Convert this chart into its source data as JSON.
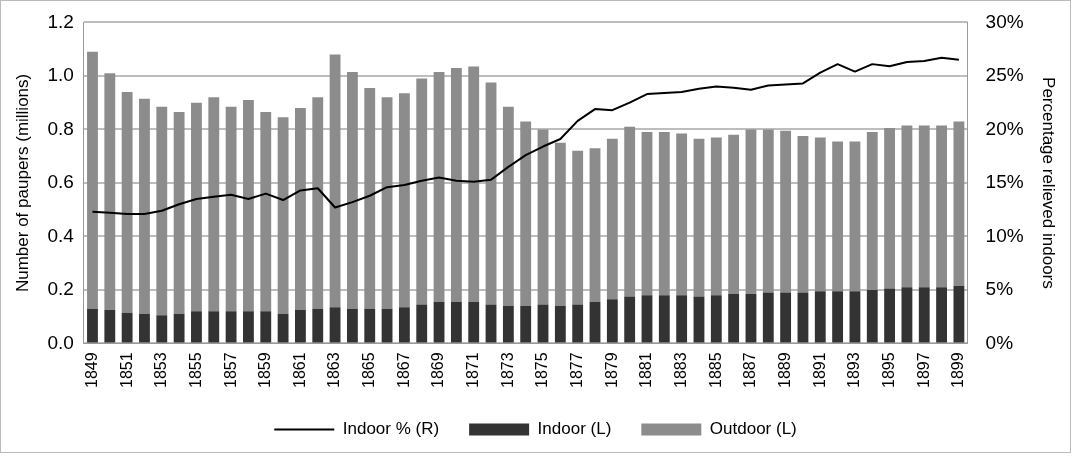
{
  "chart_data": {
    "type": "bar",
    "stacked": true,
    "ylabel": "Number of paupers (millions)",
    "y2label": "Percentage relieved indoors",
    "categories": [
      "1849",
      null,
      "1851",
      null,
      "1853",
      null,
      "1855",
      null,
      "1857",
      null,
      "1859",
      null,
      "1861",
      null,
      "1863",
      null,
      "1865",
      null,
      "1867",
      null,
      "1869",
      null,
      "1871",
      null,
      "1873",
      null,
      "1875",
      null,
      "1877",
      null,
      "1879",
      null,
      "1881",
      null,
      "1883",
      null,
      "1885",
      null,
      "1887",
      null,
      "1889",
      null,
      "1891",
      null,
      "1893",
      null,
      "1895",
      null,
      "1897",
      null,
      "1899"
    ],
    "series": [
      {
        "name": "Indoor (L)",
        "color": "#333333",
        "values": [
          0.13,
          0.125,
          0.115,
          0.11,
          0.105,
          0.11,
          0.12,
          0.12,
          0.12,
          0.12,
          0.12,
          0.11,
          0.125,
          0.13,
          0.135,
          0.13,
          0.13,
          0.13,
          0.135,
          0.145,
          0.155,
          0.155,
          0.155,
          0.145,
          0.14,
          0.14,
          0.145,
          0.14,
          0.145,
          0.155,
          0.165,
          0.175,
          0.18,
          0.18,
          0.18,
          0.175,
          0.18,
          0.185,
          0.185,
          0.19,
          0.19,
          0.19,
          0.195,
          0.195,
          0.195,
          0.2,
          0.205,
          0.21,
          0.21,
          0.21,
          0.215
        ]
      },
      {
        "name": "Outdoor (L)",
        "color": "#8c8c8c",
        "values": [
          0.96,
          0.885,
          0.825,
          0.805,
          0.78,
          0.755,
          0.78,
          0.8,
          0.765,
          0.79,
          0.745,
          0.735,
          0.755,
          0.79,
          0.945,
          0.885,
          0.825,
          0.79,
          0.8,
          0.845,
          0.86,
          0.875,
          0.88,
          0.83,
          0.745,
          0.69,
          0.655,
          0.61,
          0.575,
          0.575,
          0.6,
          0.635,
          0.61,
          0.61,
          0.605,
          0.59,
          0.59,
          0.595,
          0.615,
          0.61,
          0.605,
          0.585,
          0.575,
          0.56,
          0.56,
          0.59,
          0.6,
          0.605,
          0.605,
          0.605,
          0.615
        ]
      },
      {
        "name": "Indoor % (R)",
        "type": "line",
        "axis": "y2",
        "color": "#000000",
        "values": [
          12.3,
          12.2,
          12.1,
          12.1,
          12.4,
          13.0,
          13.5,
          13.7,
          13.9,
          13.5,
          14.0,
          13.4,
          14.3,
          14.5,
          12.7,
          13.2,
          13.8,
          14.6,
          14.8,
          15.2,
          15.5,
          15.2,
          15.1,
          15.3,
          16.5,
          17.6,
          18.4,
          19.1,
          20.8,
          21.9,
          21.8,
          22.5,
          23.3,
          23.4,
          23.5,
          23.8,
          24.0,
          23.9,
          23.7,
          24.1,
          24.2,
          24.3,
          25.3,
          26.1,
          25.4,
          26.1,
          25.9,
          26.3,
          26.4,
          26.7,
          26.5
        ]
      }
    ],
    "ylim": [
      0,
      1.2
    ],
    "yticks": [
      {
        "value": 0,
        "label": "0.0"
      },
      {
        "value": 0.2,
        "label": "0.2"
      },
      {
        "value": 0.4,
        "label": "0.4"
      },
      {
        "value": 0.6,
        "label": "0.6"
      },
      {
        "value": 0.8,
        "label": "0.8"
      },
      {
        "value": 1,
        "label": "1.0"
      },
      {
        "value": 1.2,
        "label": "1.2"
      }
    ],
    "y2lim": [
      0,
      30
    ],
    "y2ticks": [
      {
        "value": 0,
        "label": "0%"
      },
      {
        "value": 5,
        "label": "5%"
      },
      {
        "value": 10,
        "label": "10%"
      },
      {
        "value": 15,
        "label": "15%"
      },
      {
        "value": 20,
        "label": "20%"
      },
      {
        "value": 25,
        "label": "25%"
      },
      {
        "value": 30,
        "label": "30%"
      }
    ],
    "grid": "y",
    "legend": "bottom",
    "marker": "none",
    "line_style": "solid"
  }
}
